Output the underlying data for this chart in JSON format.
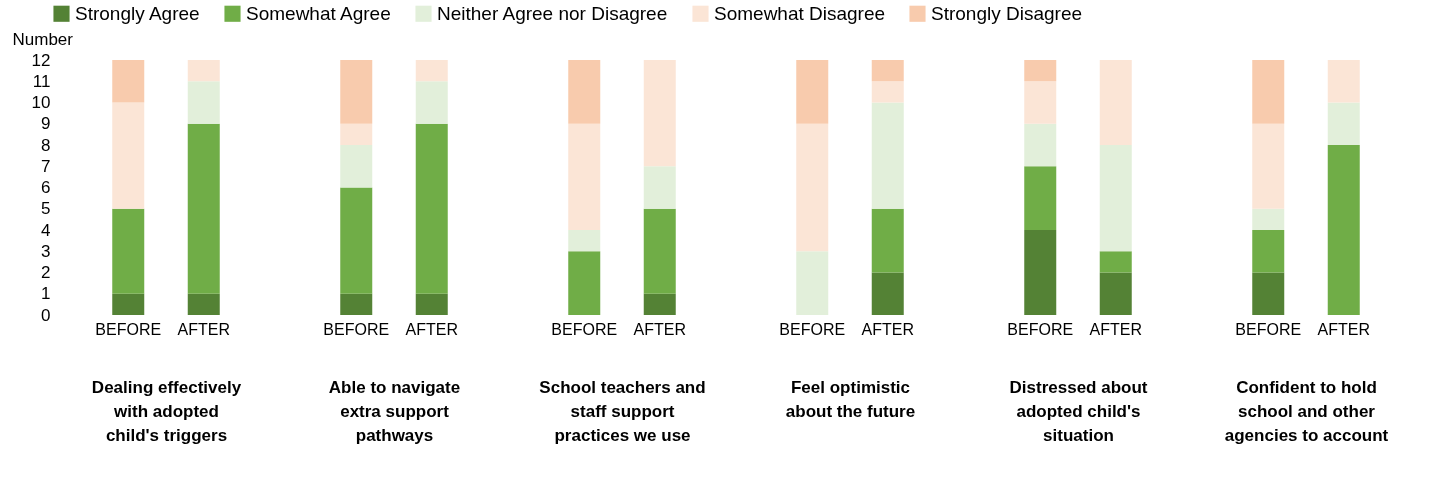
{
  "chart_data": [
    {
      "type": "bar",
      "stacked": true,
      "legend": "top",
      "ylabel": "Number",
      "xlabel": "Dealing effectively with adopted child's triggers",
      "categories": [
        "BEFORE",
        "AFTER"
      ],
      "ylim": [
        0,
        12
      ],
      "yticks": [
        0,
        1,
        2,
        3,
        4,
        5,
        6,
        7,
        8,
        9,
        10,
        11,
        12
      ],
      "series": [
        {
          "name": "Strongly Agree",
          "color": "#548235",
          "values": [
            1,
            1
          ]
        },
        {
          "name": "Somewhat Agree",
          "color": "#70ad47",
          "values": [
            4,
            8
          ]
        },
        {
          "name": "Neither Agree nor Disagree",
          "color": "#e2efda",
          "values": [
            0,
            2
          ]
        },
        {
          "name": "Somewhat Disagree",
          "color": "#fbe5d6",
          "values": [
            5,
            1
          ]
        },
        {
          "name": "Strongly Disagree",
          "color": "#f8cbad",
          "values": [
            2,
            0
          ]
        }
      ]
    },
    {
      "type": "bar",
      "stacked": true,
      "tick_labels": "x",
      "xlabel": "Able to navigate extra support pathways",
      "categories": [
        "BEFORE",
        "AFTER"
      ],
      "ylim": [
        0,
        12
      ],
      "series": [
        {
          "name": "Strongly Agree",
          "color": "#548235",
          "values": [
            1,
            1
          ]
        },
        {
          "name": "Somewhat Agree",
          "color": "#70ad47",
          "values": [
            5,
            8
          ]
        },
        {
          "name": "Neither Agree nor Disagree",
          "color": "#e2efda",
          "values": [
            2,
            2
          ]
        },
        {
          "name": "Somewhat Disagree",
          "color": "#fbe5d6",
          "values": [
            1,
            1
          ]
        },
        {
          "name": "Strongly Disagree",
          "color": "#f8cbad",
          "values": [
            3,
            0
          ]
        }
      ]
    },
    {
      "type": "bar",
      "stacked": true,
      "tick_labels": "x",
      "xlabel": "School teachers and staff support practices we use",
      "categories": [
        "BEFORE",
        "AFTER"
      ],
      "ylim": [
        0,
        12
      ],
      "series": [
        {
          "name": "Strongly Agree",
          "color": "#548235",
          "values": [
            0,
            1
          ]
        },
        {
          "name": "Somewhat Agree",
          "color": "#70ad47",
          "values": [
            3,
            4
          ]
        },
        {
          "name": "Neither Agree nor Disagree",
          "color": "#e2efda",
          "values": [
            1,
            2
          ]
        },
        {
          "name": "Somewhat Disagree",
          "color": "#fbe5d6",
          "values": [
            5,
            5
          ]
        },
        {
          "name": "Strongly Disagree",
          "color": "#f8cbad",
          "values": [
            3,
            0
          ]
        }
      ]
    },
    {
      "type": "bar",
      "stacked": true,
      "tick_labels": "x",
      "xlabel": "Feel optimistic about the future",
      "categories": [
        "BEFORE",
        "AFTER"
      ],
      "ylim": [
        0,
        12
      ],
      "series": [
        {
          "name": "Strongly Agree",
          "color": "#548235",
          "values": [
            0,
            2
          ]
        },
        {
          "name": "Somewhat Agree",
          "color": "#70ad47",
          "values": [
            0,
            3
          ]
        },
        {
          "name": "Neither Agree nor Disagree",
          "color": "#e2efda",
          "values": [
            3,
            5
          ]
        },
        {
          "name": "Somewhat Disagree",
          "color": "#fbe5d6",
          "values": [
            6,
            1
          ]
        },
        {
          "name": "Strongly Disagree",
          "color": "#f8cbad",
          "values": [
            3,
            1
          ]
        }
      ]
    },
    {
      "type": "bar",
      "stacked": true,
      "tick_labels": "x",
      "xlabel": "Distressed about adopted child's situation",
      "categories": [
        "BEFORE",
        "AFTER"
      ],
      "ylim": [
        0,
        12
      ],
      "series": [
        {
          "name": "Strongly Agree",
          "color": "#548235",
          "values": [
            4,
            2
          ]
        },
        {
          "name": "Somewhat Agree",
          "color": "#70ad47",
          "values": [
            3,
            1
          ]
        },
        {
          "name": "Neither Agree nor Disagree",
          "color": "#e2efda",
          "values": [
            2,
            5
          ]
        },
        {
          "name": "Somewhat Disagree",
          "color": "#fbe5d6",
          "values": [
            2,
            4
          ]
        },
        {
          "name": "Strongly Disagree",
          "color": "#f8cbad",
          "values": [
            1,
            0
          ]
        }
      ]
    },
    {
      "type": "bar",
      "stacked": true,
      "tick_labels": "x",
      "xlabel": "Confident to hold school and other agencies to account",
      "categories": [
        "BEFORE",
        "AFTER"
      ],
      "ylim": [
        0,
        12
      ],
      "series": [
        {
          "name": "Strongly Agree",
          "color": "#548235",
          "values": [
            2,
            0
          ]
        },
        {
          "name": "Somewhat Agree",
          "color": "#70ad47",
          "values": [
            2,
            8
          ]
        },
        {
          "name": "Neither Agree nor Disagree",
          "color": "#e2efda",
          "values": [
            1,
            2
          ]
        },
        {
          "name": "Somewhat Disagree",
          "color": "#fbe5d6",
          "values": [
            4,
            2
          ]
        },
        {
          "name": "Strongly Disagree",
          "color": "#f8cbad",
          "values": [
            3,
            0
          ]
        }
      ]
    }
  ]
}
